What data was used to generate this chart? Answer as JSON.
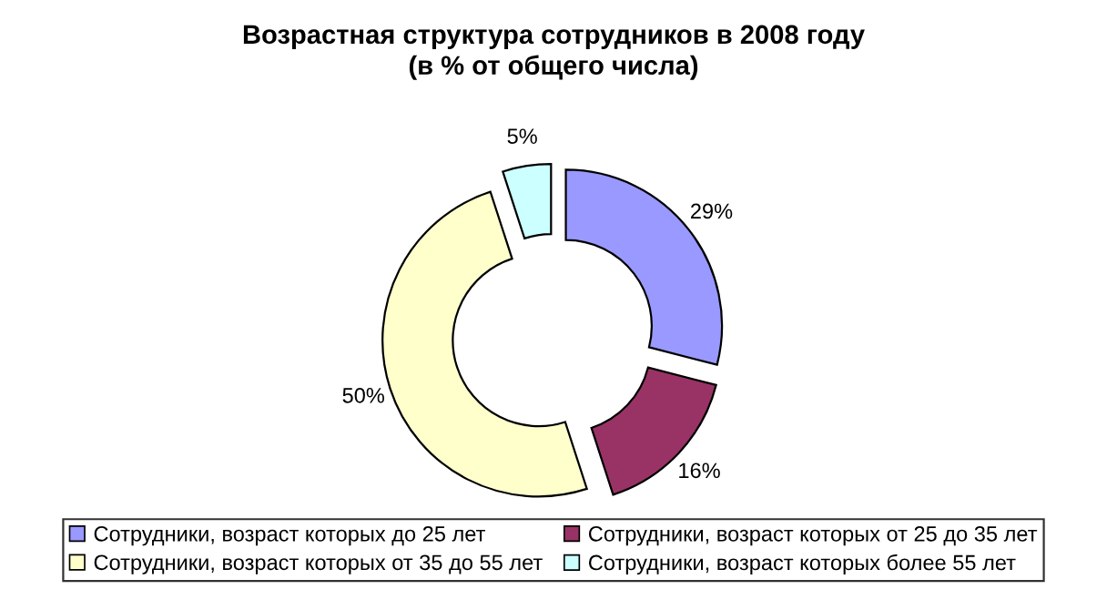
{
  "chart_data": {
    "type": "donut",
    "title": "Возрастная структура сотрудников в 2008 году\n(в % от общего числа)",
    "categories": [
      "Сотрудники, возраст которых до 25 лет",
      "Сотрудники, возраст которых от 25 до 35 лет",
      "Сотрудники, возраст которых от 35 до 55 лет",
      "Сотрудники, возраст которых более 55 лет"
    ],
    "values": [
      29,
      16,
      50,
      5
    ],
    "colors": [
      "#9999ff",
      "#993366",
      "#ffffcc",
      "#ccffff"
    ],
    "value_labels": [
      "29%",
      "16%",
      "50%",
      "5%"
    ],
    "legend": "bottom"
  }
}
